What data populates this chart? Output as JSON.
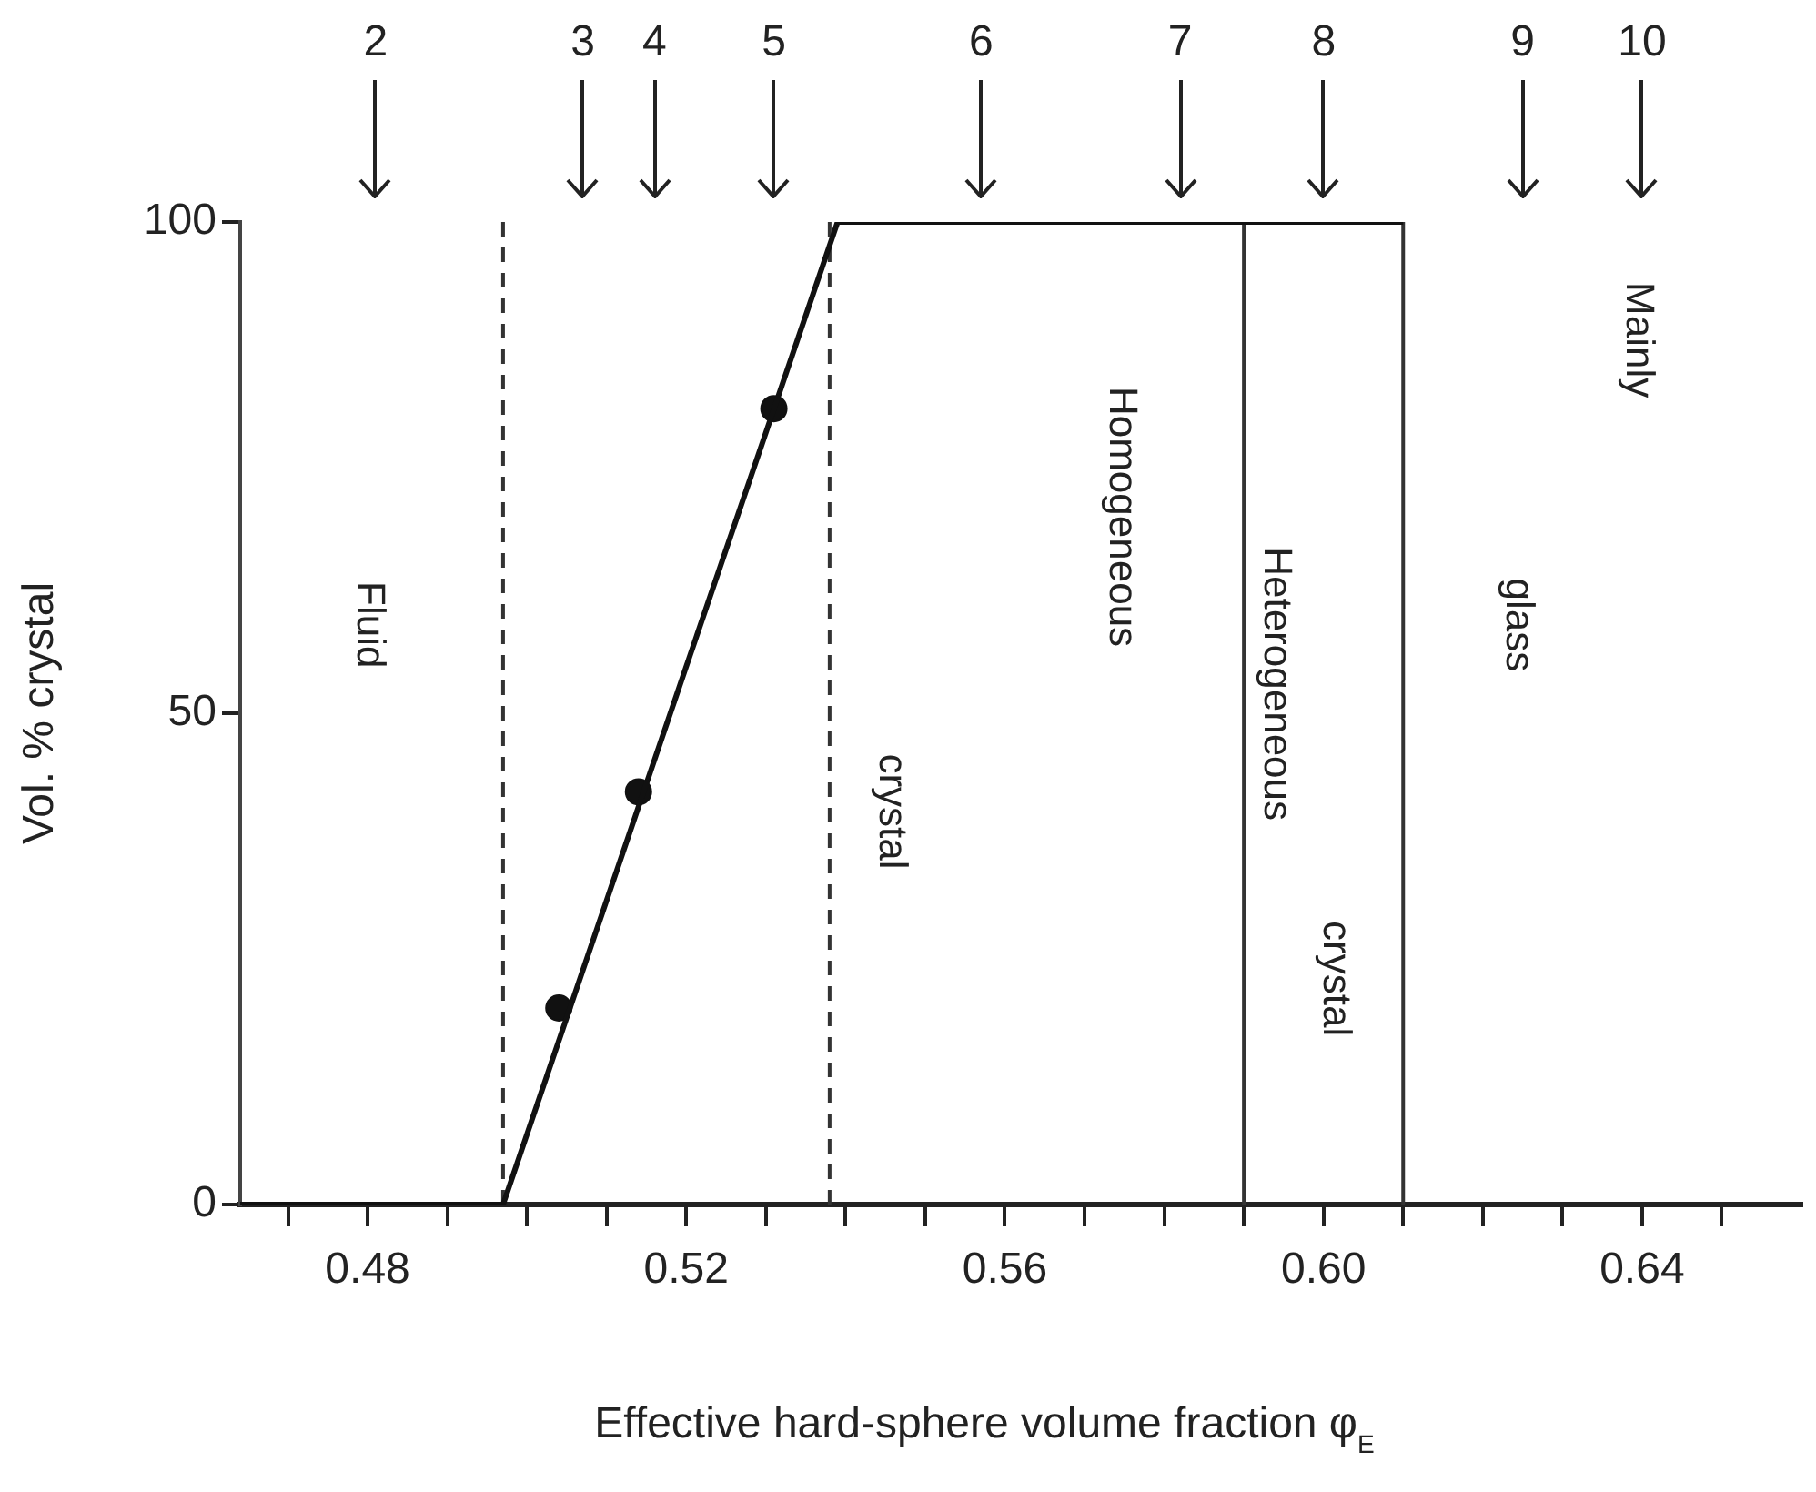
{
  "chart_data": {
    "type": "line",
    "xlabel": "Effective hard-sphere volume fraction φ$_{E}$",
    "ylabel": "Vol. % crystal",
    "xlim": [
      0.464,
      0.66
    ],
    "ylim": [
      0,
      100
    ],
    "yticks": [
      0,
      50,
      100
    ],
    "xticks": [
      {
        "value": 0.47,
        "label": null
      },
      {
        "value": 0.48,
        "label": "0.48"
      },
      {
        "value": 0.49,
        "label": null
      },
      {
        "value": 0.5,
        "label": null
      },
      {
        "value": 0.51,
        "label": null
      },
      {
        "value": 0.52,
        "label": "0.52"
      },
      {
        "value": 0.53,
        "label": null
      },
      {
        "value": 0.54,
        "label": null
      },
      {
        "value": 0.55,
        "label": null
      },
      {
        "value": 0.56,
        "label": "0.56"
      },
      {
        "value": 0.57,
        "label": null
      },
      {
        "value": 0.58,
        "label": null
      },
      {
        "value": 0.59,
        "label": null
      },
      {
        "value": 0.6,
        "label": "0.60"
      },
      {
        "value": 0.61,
        "label": null
      },
      {
        "value": 0.62,
        "label": null
      },
      {
        "value": 0.63,
        "label": null
      },
      {
        "value": 0.64,
        "label": "0.64"
      },
      {
        "value": 0.65,
        "label": null
      }
    ],
    "series": [
      {
        "color": "#111111",
        "marker": "none",
        "x": [
          0.464,
          0.497,
          0.539,
          0.61
        ],
        "values": [
          0,
          0,
          100,
          100
        ]
      },
      {
        "type": "scatter",
        "color": "#111111",
        "marker": "circle",
        "x": [
          0.504,
          0.514,
          0.531
        ],
        "values": [
          20,
          42,
          81
        ]
      }
    ],
    "ref_lines": [
      {
        "axis": "x",
        "value": 0.497,
        "line_style": "dashed",
        "color": "#333333"
      },
      {
        "axis": "x",
        "value": 0.538,
        "line_style": "dashed",
        "color": "#333333"
      },
      {
        "axis": "x",
        "value": 0.59,
        "line_style": "solid",
        "color": "#333333"
      },
      {
        "axis": "x",
        "value": 0.61,
        "line_style": "solid",
        "color": "#333333"
      }
    ],
    "annotations": [
      "Fluid",
      "crystal",
      "Homogeneous",
      "Heterogeneous",
      "crystal",
      "Mainly",
      "glass",
      "2",
      "3",
      "4",
      "5",
      "6",
      "7",
      "8",
      "9",
      "10"
    ],
    "grid": false,
    "legend": false
  }
}
